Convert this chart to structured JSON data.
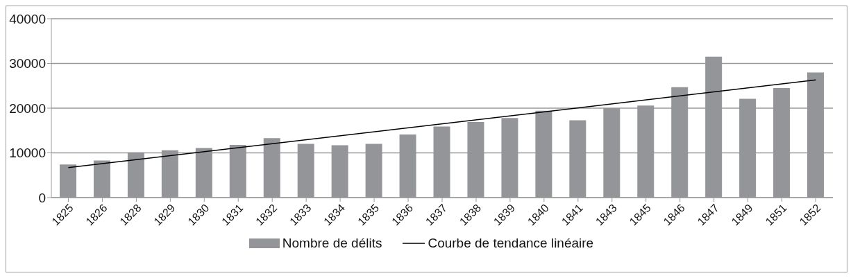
{
  "chart_data": {
    "type": "bar",
    "categories": [
      "1825",
      "1826",
      "1828",
      "1829",
      "1830",
      "1831",
      "1832",
      "1833",
      "1834",
      "1835",
      "1836",
      "1837",
      "1838",
      "1839",
      "1840",
      "1841",
      "1843",
      "1845",
      "1846",
      "1847",
      "1849",
      "1851",
      "1852"
    ],
    "series": [
      {
        "name": "Nombre de délits",
        "color": "#939598",
        "values": [
          7400,
          8300,
          10100,
          10600,
          11100,
          11800,
          13300,
          12000,
          11700,
          12000,
          14100,
          15900,
          16900,
          17800,
          19400,
          17300,
          20000,
          20600,
          24700,
          31500,
          22100,
          24500,
          28000
        ]
      },
      {
        "name": "Courbe de tendance linéaire",
        "type": "line",
        "color": "#000000",
        "values": [
          6700,
          null,
          null,
          null,
          null,
          null,
          null,
          null,
          null,
          null,
          null,
          null,
          null,
          null,
          null,
          null,
          null,
          null,
          null,
          null,
          null,
          null,
          26300
        ]
      }
    ],
    "ylim": [
      0,
      40000
    ],
    "yticks": [
      0,
      10000,
      20000,
      30000,
      40000
    ],
    "grid": "y",
    "legend": "bottom",
    "marker": "none",
    "line_style": "solid"
  }
}
